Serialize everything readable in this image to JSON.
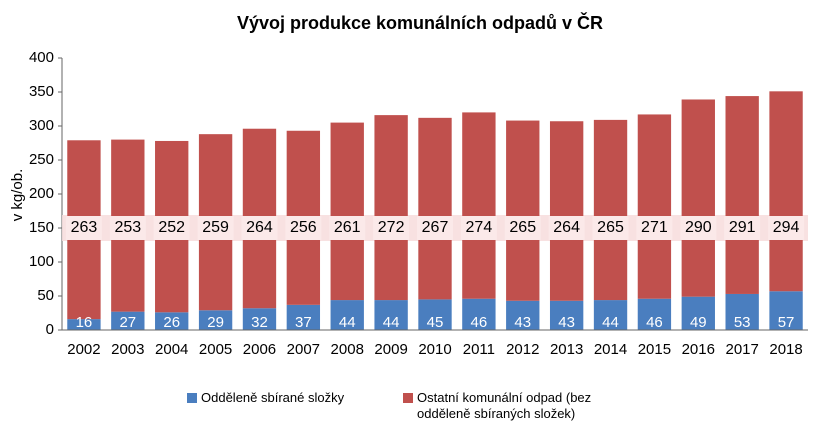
{
  "chart_data": {
    "type": "stacked-bar",
    "title": "Vývoj produkce komunálních odpadů v ČR",
    "y_label": "v kg/ob.",
    "categories": [
      "2002",
      "2003",
      "2004",
      "2005",
      "2006",
      "2007",
      "2008",
      "2009",
      "2010",
      "2011",
      "2012",
      "2013",
      "2014",
      "2015",
      "2016",
      "2017",
      "2018"
    ],
    "series": [
      {
        "name": "Odděleně sbírané složky",
        "color": "#4a7ebf",
        "values": [
          16,
          27,
          26,
          29,
          32,
          37,
          44,
          44,
          45,
          46,
          43,
          43,
          44,
          46,
          49,
          53,
          57
        ]
      },
      {
        "name": "Ostatní komunální odpad (bez odděleně sbíraných složek)",
        "color": "#c0504d",
        "values": [
          263,
          253,
          252,
          259,
          264,
          256,
          261,
          272,
          267,
          274,
          265,
          264,
          265,
          271,
          290,
          291,
          294
        ]
      }
    ],
    "ylim": [
      0,
      400
    ],
    "yticks": [
      0,
      50,
      100,
      150,
      200,
      250,
      300,
      350,
      400
    ],
    "grid": false
  }
}
